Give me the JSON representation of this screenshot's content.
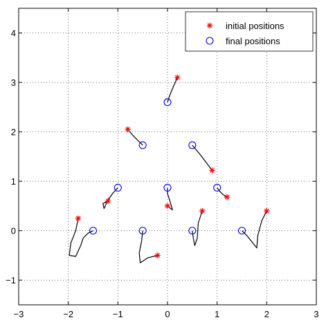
{
  "chart_data": {
    "type": "scatter",
    "xlim": [
      -3,
      3
    ],
    "ylim": [
      -1.5,
      4.5
    ],
    "xticks": [
      -3,
      -2,
      -1,
      0,
      1,
      2,
      3
    ],
    "yticks": [
      -1,
      0,
      1,
      2,
      3,
      4
    ],
    "grid": true,
    "legend": {
      "placement": "top-right",
      "entries": [
        {
          "label": "initial positions",
          "marker": "asterisk",
          "color": "#ff0000"
        },
        {
          "label": "final positions",
          "marker": "circle",
          "color": "#0000ff"
        }
      ]
    },
    "series": [
      {
        "name": "initial positions",
        "marker": "asterisk",
        "color": "#ff0000",
        "points": [
          [
            0.2,
            3.1
          ],
          [
            -0.8,
            2.05
          ],
          [
            0.9,
            1.22
          ],
          [
            -1.2,
            0.6
          ],
          [
            1.2,
            0.68
          ],
          [
            0.0,
            0.5
          ],
          [
            0.7,
            0.4
          ],
          [
            2.0,
            0.4
          ],
          [
            -1.8,
            0.25
          ],
          [
            -0.2,
            -0.5
          ]
        ]
      },
      {
        "name": "final positions",
        "marker": "circle",
        "color": "#0000ff",
        "points": [
          [
            0.0,
            2.6
          ],
          [
            -0.5,
            1.73
          ],
          [
            0.5,
            1.73
          ],
          [
            -1.0,
            0.87
          ],
          [
            0.0,
            0.87
          ],
          [
            1.0,
            0.87
          ],
          [
            -1.5,
            0.0
          ],
          [
            -0.5,
            0.0
          ],
          [
            0.5,
            0.0
          ],
          [
            1.5,
            0.0
          ]
        ]
      }
    ],
    "trajectories": [
      [
        [
          0.2,
          3.1
        ],
        [
          0.12,
          2.92
        ],
        [
          0.05,
          2.75
        ],
        [
          0.0,
          2.6
        ]
      ],
      [
        [
          -0.8,
          2.05
        ],
        [
          -0.7,
          1.93
        ],
        [
          -0.6,
          1.83
        ],
        [
          -0.5,
          1.73
        ]
      ],
      [
        [
          0.9,
          1.22
        ],
        [
          0.78,
          1.38
        ],
        [
          0.65,
          1.55
        ],
        [
          0.5,
          1.73
        ]
      ],
      [
        [
          -1.2,
          0.6
        ],
        [
          -1.3,
          0.55
        ],
        [
          -1.28,
          0.45
        ],
        [
          -1.2,
          0.62
        ],
        [
          -1.1,
          0.76
        ],
        [
          -1.0,
          0.87
        ]
      ],
      [
        [
          1.2,
          0.68
        ],
        [
          1.12,
          0.73
        ],
        [
          1.05,
          0.8
        ],
        [
          1.0,
          0.87
        ]
      ],
      [
        [
          0.0,
          0.5
        ],
        [
          0.1,
          0.42
        ],
        [
          0.05,
          0.6
        ],
        [
          0.0,
          0.75
        ],
        [
          0.0,
          0.87
        ]
      ],
      [
        [
          0.7,
          0.4
        ],
        [
          0.62,
          0.15
        ],
        [
          0.6,
          -0.15
        ],
        [
          0.55,
          -0.3
        ],
        [
          0.52,
          -0.15
        ],
        [
          0.5,
          0.0
        ]
      ],
      [
        [
          2.0,
          0.4
        ],
        [
          1.9,
          0.2
        ],
        [
          1.82,
          -0.1
        ],
        [
          1.8,
          -0.35
        ],
        [
          1.72,
          -0.25
        ],
        [
          1.6,
          -0.1
        ],
        [
          1.5,
          0.0
        ]
      ],
      [
        [
          -1.8,
          0.25
        ],
        [
          -1.85,
          0.0
        ],
        [
          -1.95,
          -0.25
        ],
        [
          -1.98,
          -0.5
        ],
        [
          -1.85,
          -0.52
        ],
        [
          -1.75,
          -0.3
        ],
        [
          -1.7,
          -0.15
        ],
        [
          -1.6,
          -0.05
        ],
        [
          -1.5,
          0.0
        ]
      ],
      [
        [
          -0.2,
          -0.5
        ],
        [
          -0.4,
          -0.55
        ],
        [
          -0.55,
          -0.65
        ],
        [
          -0.57,
          -0.45
        ],
        [
          -0.52,
          -0.2
        ],
        [
          -0.5,
          0.0
        ]
      ]
    ]
  }
}
